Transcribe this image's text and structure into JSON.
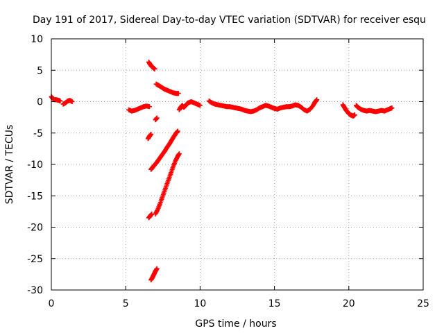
{
  "chart_data": {
    "type": "scatter",
    "title": "Day 191 of 2017, Sidereal Day-to-day VTEC variation (SDTVAR) for receiver esqu",
    "xlabel": "GPS time / hours",
    "ylabel": "SDTVAR / TECUs",
    "xlim": [
      0,
      25
    ],
    "ylim": [
      -30,
      10
    ],
    "xticks": [
      0,
      5,
      10,
      15,
      20,
      25
    ],
    "yticks": [
      -30,
      -25,
      -20,
      -15,
      -10,
      -5,
      0,
      5,
      10
    ],
    "grid": true,
    "series": [
      {
        "name": "SDTVAR",
        "color": "#ff0000",
        "marker": "plus",
        "segments": [
          [
            [
              0.0,
              0.8
            ],
            [
              0.1,
              0.5
            ],
            [
              0.2,
              0.3
            ],
            [
              0.35,
              0.3
            ],
            [
              0.5,
              0.2
            ],
            [
              0.6,
              0.1
            ]
          ],
          [
            [
              0.8,
              -0.4
            ],
            [
              0.95,
              -0.2
            ],
            [
              1.1,
              0.1
            ],
            [
              1.25,
              0.2
            ],
            [
              1.4,
              0.0
            ]
          ],
          [
            [
              5.2,
              -1.3
            ],
            [
              5.4,
              -1.5
            ],
            [
              5.6,
              -1.4
            ],
            [
              5.8,
              -1.2
            ],
            [
              6.0,
              -1.0
            ],
            [
              6.2,
              -0.8
            ],
            [
              6.4,
              -0.7
            ],
            [
              6.6,
              -0.8
            ]
          ],
          [
            [
              6.55,
              6.3
            ],
            [
              6.65,
              5.9
            ],
            [
              6.75,
              5.6
            ],
            [
              6.85,
              5.4
            ],
            [
              6.95,
              5.2
            ]
          ],
          [
            [
              6.5,
              -5.9
            ],
            [
              6.6,
              -5.5
            ],
            [
              6.7,
              -5.2
            ]
          ],
          [
            [
              7.0,
              -2.9
            ],
            [
              7.1,
              -2.6
            ]
          ],
          [
            [
              7.05,
              2.8
            ],
            [
              7.2,
              2.6
            ],
            [
              7.4,
              2.3
            ],
            [
              7.6,
              2.0
            ],
            [
              7.8,
              1.8
            ],
            [
              8.0,
              1.6
            ],
            [
              8.2,
              1.4
            ],
            [
              8.4,
              1.3
            ],
            [
              8.55,
              1.3
            ]
          ],
          [
            [
              6.7,
              -10.8
            ],
            [
              6.8,
              -10.5
            ],
            [
              6.9,
              -10.2
            ],
            [
              7.05,
              -9.8
            ],
            [
              7.2,
              -9.3
            ],
            [
              7.35,
              -8.8
            ],
            [
              7.5,
              -8.3
            ],
            [
              7.65,
              -7.8
            ],
            [
              7.8,
              -7.2
            ],
            [
              7.95,
              -6.7
            ],
            [
              8.1,
              -6.1
            ],
            [
              8.25,
              -5.5
            ],
            [
              8.4,
              -5.0
            ],
            [
              8.5,
              -4.7
            ]
          ],
          [
            [
              6.55,
              -18.5
            ],
            [
              6.65,
              -18.2
            ],
            [
              6.75,
              -17.9
            ]
          ],
          [
            [
              7.0,
              -17.9
            ],
            [
              7.15,
              -17.2
            ],
            [
              7.3,
              -16.3
            ],
            [
              7.45,
              -15.3
            ],
            [
              7.6,
              -14.3
            ],
            [
              7.75,
              -13.3
            ],
            [
              7.9,
              -12.3
            ],
            [
              8.05,
              -11.3
            ],
            [
              8.2,
              -10.3
            ],
            [
              8.35,
              -9.4
            ],
            [
              8.5,
              -8.7
            ],
            [
              8.6,
              -8.3
            ]
          ],
          [
            [
              6.7,
              -28.4
            ],
            [
              6.8,
              -28.0
            ],
            [
              6.9,
              -27.5
            ],
            [
              7.0,
              -27.0
            ],
            [
              7.1,
              -26.6
            ]
          ],
          [
            [
              8.6,
              -1.3
            ],
            [
              8.7,
              -0.9
            ],
            [
              8.8,
              -0.6
            ],
            [
              8.9,
              -0.9
            ],
            [
              9.0,
              -0.7
            ],
            [
              9.1,
              -0.4
            ],
            [
              9.2,
              -0.2
            ],
            [
              9.4,
              0.0
            ],
            [
              9.6,
              -0.2
            ],
            [
              9.8,
              -0.4
            ],
            [
              10.0,
              -0.6
            ]
          ],
          [
            [
              10.6,
              0.1
            ],
            [
              10.8,
              -0.2
            ],
            [
              11.0,
              -0.4
            ],
            [
              11.2,
              -0.5
            ],
            [
              11.4,
              -0.6
            ],
            [
              11.6,
              -0.7
            ],
            [
              11.8,
              -0.8
            ],
            [
              12.0,
              -0.8
            ],
            [
              12.2,
              -0.9
            ],
            [
              12.4,
              -1.0
            ],
            [
              12.6,
              -1.1
            ],
            [
              12.8,
              -1.2
            ],
            [
              13.0,
              -1.4
            ],
            [
              13.2,
              -1.5
            ],
            [
              13.4,
              -1.6
            ],
            [
              13.6,
              -1.5
            ],
            [
              13.8,
              -1.3
            ],
            [
              14.0,
              -1.0
            ],
            [
              14.2,
              -0.8
            ],
            [
              14.4,
              -0.6
            ],
            [
              14.6,
              -0.7
            ],
            [
              14.8,
              -0.9
            ],
            [
              15.0,
              -1.1
            ],
            [
              15.2,
              -1.2
            ],
            [
              15.4,
              -1.0
            ],
            [
              15.6,
              -0.9
            ],
            [
              15.8,
              -0.8
            ],
            [
              16.0,
              -0.8
            ],
            [
              16.2,
              -0.7
            ],
            [
              16.4,
              -0.5
            ],
            [
              16.6,
              -0.6
            ],
            [
              16.8,
              -0.9
            ],
            [
              17.0,
              -1.3
            ],
            [
              17.2,
              -1.5
            ],
            [
              17.4,
              -1.2
            ],
            [
              17.6,
              -0.6
            ],
            [
              17.75,
              0.0
            ],
            [
              17.85,
              0.3
            ]
          ],
          [
            [
              19.6,
              -0.5
            ],
            [
              19.7,
              -0.9
            ],
            [
              19.8,
              -1.3
            ],
            [
              19.9,
              -1.6
            ],
            [
              20.0,
              -1.9
            ],
            [
              20.1,
              -2.1
            ],
            [
              20.2,
              -2.2
            ],
            [
              20.3,
              -2.3
            ],
            [
              20.4,
              -2.1
            ]
          ],
          [
            [
              20.5,
              -0.6
            ],
            [
              20.6,
              -0.9
            ],
            [
              20.8,
              -1.2
            ],
            [
              21.0,
              -1.4
            ],
            [
              21.2,
              -1.5
            ],
            [
              21.4,
              -1.4
            ],
            [
              21.6,
              -1.5
            ],
            [
              21.8,
              -1.6
            ],
            [
              22.0,
              -1.5
            ],
            [
              22.2,
              -1.4
            ],
            [
              22.4,
              -1.5
            ],
            [
              22.6,
              -1.3
            ],
            [
              22.8,
              -1.1
            ],
            [
              22.9,
              -1.0
            ]
          ]
        ]
      }
    ]
  }
}
